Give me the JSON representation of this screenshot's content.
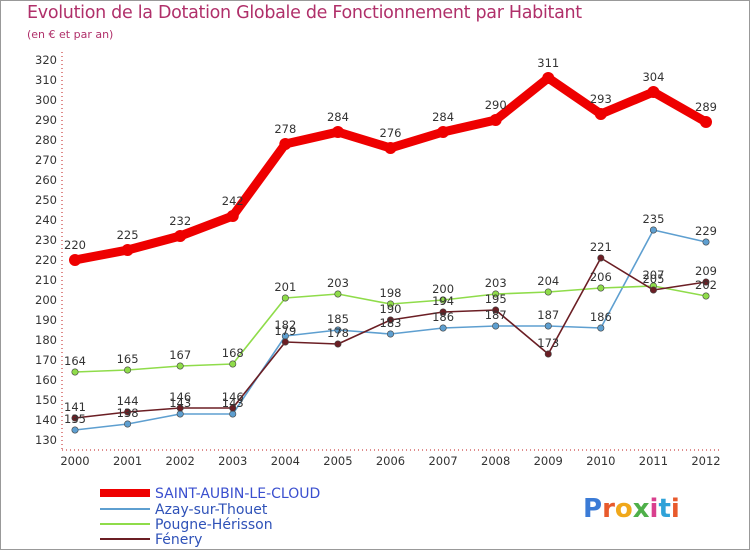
{
  "title": "Evolution de la Dotation Globale de Fonctionnement par Habitant",
  "subtitle": "(en € et par an)",
  "brand": "Proxiti",
  "chart_data": {
    "type": "line",
    "title": "Evolution de la Dotation Globale de Fonctionnement par Habitant",
    "ylabel": "(en € et par an)",
    "xlabel": "",
    "x": [
      "2000",
      "2001",
      "2002",
      "2003",
      "2004",
      "2005",
      "2006",
      "2007",
      "2008",
      "2009",
      "2010",
      "2011",
      "2012"
    ],
    "yticks": [
      130,
      140,
      150,
      160,
      170,
      180,
      190,
      200,
      210,
      220,
      230,
      240,
      250,
      260,
      270,
      280,
      290,
      300,
      310,
      320
    ],
    "ylim": [
      130,
      320
    ],
    "grid": false,
    "legend_position": "bottom",
    "series": [
      {
        "name": "SAINT-AUBIN-LE-CLOUD",
        "color": "#ee0000",
        "values": [
          220,
          225,
          232,
          242,
          278,
          284,
          276,
          284,
          290,
          311,
          293,
          304,
          289
        ]
      },
      {
        "name": "Azay-sur-Thouet",
        "color": "#5e9fd0",
        "values": [
          135,
          138,
          143,
          143,
          182,
          185,
          183,
          186,
          187,
          187,
          186,
          235,
          229
        ]
      },
      {
        "name": "Pougne-Hérisson",
        "color": "#8fdc4a",
        "values": [
          164,
          165,
          167,
          168,
          201,
          203,
          198,
          200,
          203,
          204,
          206,
          207,
          202
        ]
      },
      {
        "name": "Fénery",
        "color": "#6b1e24",
        "values": [
          141,
          144,
          146,
          146,
          179,
          178,
          190,
          194,
          195,
          173,
          221,
          205,
          209
        ]
      }
    ]
  }
}
